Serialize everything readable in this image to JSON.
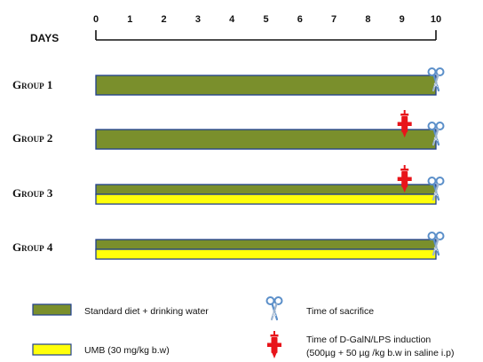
{
  "axis": {
    "label": "DAYS",
    "ticks": [
      "0",
      "1",
      "2",
      "3",
      "4",
      "5",
      "6",
      "7",
      "8",
      "9",
      "10"
    ]
  },
  "groups": [
    {
      "label": "Group 1",
      "bars": [
        "standard"
      ],
      "induction_day": null,
      "sacrifice_day": 10
    },
    {
      "label": "Group 2",
      "bars": [
        "standard"
      ],
      "induction_day": 9,
      "sacrifice_day": 10
    },
    {
      "label": "Group 3",
      "bars": [
        "standard",
        "umb"
      ],
      "induction_day": 9,
      "sacrifice_day": 10
    },
    {
      "label": "Group 4",
      "bars": [
        "standard",
        "umb"
      ],
      "induction_day": null,
      "sacrifice_day": 10
    }
  ],
  "legend": {
    "standard": "Standard diet + drinking water",
    "umb": "UMB (30 mg/kg b.w)",
    "sacrifice": "Time of sacrifice",
    "induction_line1": "Time of D-GalN/LPS induction",
    "induction_line2": "(500µg + 50 µg /kg b.w in saline i.p)"
  },
  "colors": {
    "standard": "#7a8f2c",
    "umb": "#ffff0a",
    "bar_border": "#1f3f8f",
    "induction": "#e8141a",
    "scissors": "#5b8fc9"
  },
  "icons": {
    "sacrifice": "scissors-icon",
    "induction": "syringe-injection-icon"
  }
}
